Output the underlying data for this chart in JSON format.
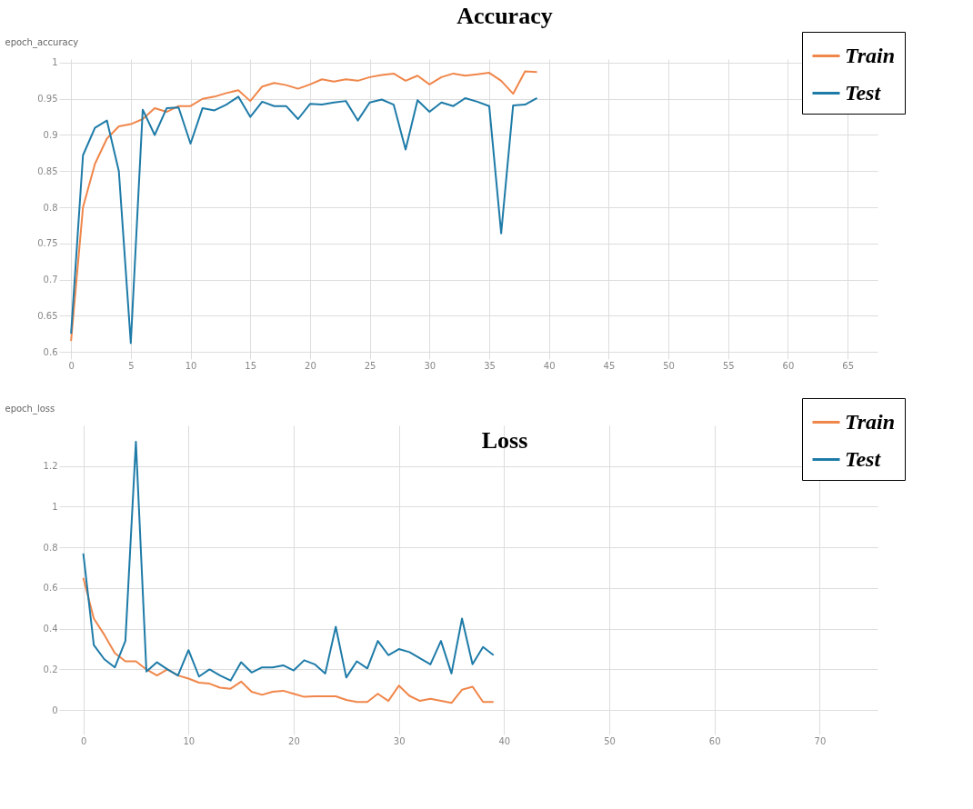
{
  "chart_data": [
    {
      "type": "line",
      "title": "Accuracy",
      "ylabel": "epoch_accuracy",
      "x": [
        0,
        1,
        2,
        3,
        4,
        5,
        6,
        7,
        8,
        9,
        10,
        11,
        12,
        13,
        14,
        15,
        16,
        17,
        18,
        19,
        20,
        21,
        22,
        23,
        24,
        25,
        26,
        27,
        28,
        29,
        30,
        31,
        32,
        33,
        34,
        35,
        36,
        37,
        38,
        39
      ],
      "xlim": [
        -1,
        67.5
      ],
      "xticks": [
        0,
        5,
        10,
        15,
        20,
        25,
        30,
        35,
        40,
        45,
        50,
        55,
        60,
        65
      ],
      "ylim": [
        0.59,
        1.005
      ],
      "yticks": [
        0.6,
        0.65,
        0.7,
        0.75,
        0.8,
        0.85,
        0.9,
        0.95,
        1
      ],
      "grid": true,
      "legend": "top right",
      "series": [
        {
          "name": "Train",
          "color": "#f0864a",
          "values": [
            0.615,
            0.8,
            0.86,
            0.895,
            0.912,
            0.915,
            0.922,
            0.937,
            0.932,
            0.94,
            0.94,
            0.95,
            0.953,
            0.958,
            0.962,
            0.947,
            0.967,
            0.972,
            0.969,
            0.964,
            0.97,
            0.977,
            0.974,
            0.977,
            0.975,
            0.98,
            0.983,
            0.985,
            0.975,
            0.982,
            0.97,
            0.98,
            0.985,
            0.982,
            0.984,
            0.986,
            0.975,
            0.957,
            0.988,
            0.987
          ]
        },
        {
          "name": "Test",
          "color": "#1e7ba8",
          "values": [
            0.625,
            0.872,
            0.91,
            0.92,
            0.85,
            0.612,
            0.935,
            0.9,
            0.937,
            0.938,
            0.888,
            0.937,
            0.934,
            0.942,
            0.953,
            0.925,
            0.946,
            0.94,
            0.94,
            0.922,
            0.943,
            0.942,
            0.945,
            0.947,
            0.92,
            0.945,
            0.949,
            0.942,
            0.88,
            0.948,
            0.932,
            0.945,
            0.94,
            0.951,
            0.946,
            0.94,
            0.764,
            0.941,
            0.942,
            0.951
          ]
        }
      ]
    },
    {
      "type": "line",
      "title": "Loss",
      "ylabel": "epoch_loss",
      "x": [
        0,
        1,
        2,
        3,
        4,
        5,
        6,
        7,
        8,
        9,
        10,
        11,
        12,
        13,
        14,
        15,
        16,
        17,
        18,
        19,
        20,
        21,
        22,
        23,
        24,
        25,
        26,
        27,
        28,
        29,
        30,
        31,
        32,
        33,
        34,
        35,
        36,
        37,
        38,
        39
      ],
      "xlim": [
        -2.3,
        75.5
      ],
      "xticks": [
        0,
        10,
        20,
        30,
        40,
        50,
        60,
        70
      ],
      "ylim": [
        -0.12,
        1.4
      ],
      "yticks": [
        0,
        0.2,
        0.4,
        0.6,
        0.8,
        1,
        1.2
      ],
      "grid": true,
      "legend": "top right",
      "series": [
        {
          "name": "Train",
          "color": "#f0864a",
          "values": [
            0.65,
            0.45,
            0.37,
            0.28,
            0.24,
            0.24,
            0.2,
            0.17,
            0.2,
            0.17,
            0.155,
            0.135,
            0.13,
            0.11,
            0.105,
            0.14,
            0.09,
            0.075,
            0.09,
            0.095,
            0.08,
            0.065,
            0.068,
            0.068,
            0.068,
            0.05,
            0.04,
            0.04,
            0.08,
            0.045,
            0.12,
            0.07,
            0.045,
            0.055,
            0.045,
            0.035,
            0.1,
            0.115,
            0.04,
            0.04
          ]
        },
        {
          "name": "Test",
          "color": "#1e7ba8",
          "values": [
            0.77,
            0.32,
            0.25,
            0.21,
            0.34,
            1.32,
            0.19,
            0.235,
            0.2,
            0.17,
            0.295,
            0.165,
            0.2,
            0.17,
            0.145,
            0.235,
            0.185,
            0.21,
            0.21,
            0.22,
            0.195,
            0.245,
            0.225,
            0.18,
            0.41,
            0.16,
            0.24,
            0.205,
            0.34,
            0.27,
            0.3,
            0.285,
            0.255,
            0.225,
            0.34,
            0.18,
            0.45,
            0.225,
            0.31,
            0.27
          ]
        }
      ]
    }
  ]
}
